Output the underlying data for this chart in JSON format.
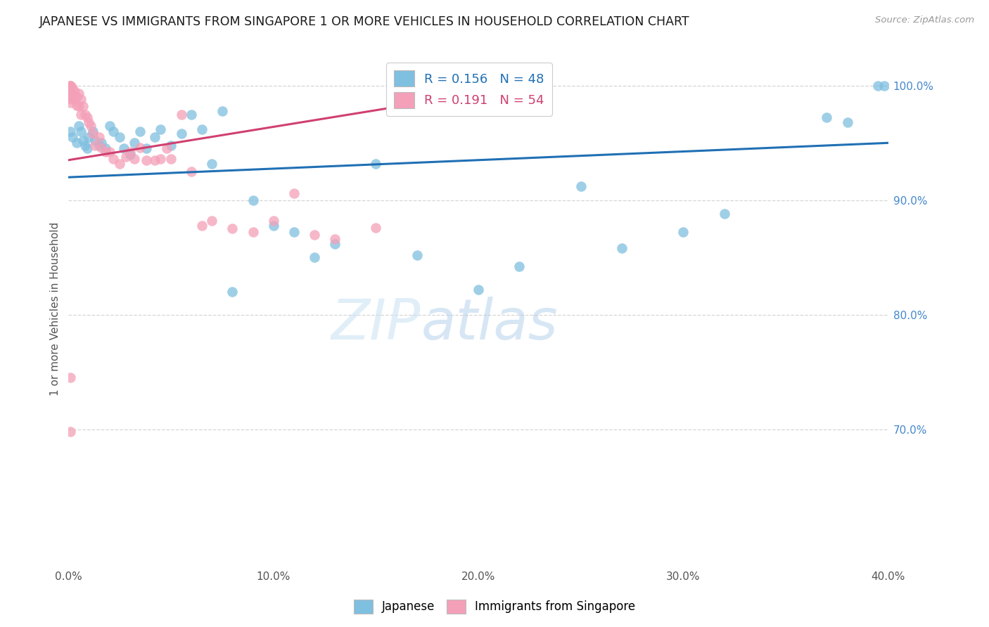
{
  "title": "JAPANESE VS IMMIGRANTS FROM SINGAPORE 1 OR MORE VEHICLES IN HOUSEHOLD CORRELATION CHART",
  "source": "Source: ZipAtlas.com",
  "ylabel": "1 or more Vehicles in Household",
  "xlim": [
    0.0,
    0.4
  ],
  "ylim": [
    0.58,
    1.03
  ],
  "xtick_values": [
    0.0,
    0.1,
    0.2,
    0.3,
    0.4
  ],
  "xtick_labels": [
    "0.0%",
    "10.0%",
    "20.0%",
    "30.0%",
    "40.0%"
  ],
  "ytick_right_values": [
    0.7,
    0.8,
    0.9,
    1.0
  ],
  "ytick_right_labels": [
    "70.0%",
    "80.0%",
    "90.0%",
    "100.0%"
  ],
  "watermark": "ZIPatlas",
  "blue_color": "#7fbfdf",
  "pink_color": "#f4a0b8",
  "trend_blue_color": "#2070b4",
  "trend_pink_color": "#d04070",
  "background_color": "#ffffff",
  "grid_color": "#cccccc",
  "title_color": "#1a1a1a",
  "source_color": "#999999",
  "axis_color": "#555555",
  "right_tick_color": "#4488cc",
  "legend_R_color_blue": "#2070b4",
  "legend_R_color_pink": "#d04070",
  "legend_N_color": "#333333",
  "japanese_x": [
    0.001,
    0.002,
    0.004,
    0.005,
    0.006,
    0.007,
    0.008,
    0.009,
    0.01,
    0.012,
    0.013,
    0.015,
    0.016,
    0.018,
    0.02,
    0.022,
    0.025,
    0.027,
    0.03,
    0.032,
    0.035,
    0.038,
    0.042,
    0.045,
    0.05,
    0.055,
    0.06,
    0.065,
    0.07,
    0.075,
    0.08,
    0.09,
    0.1,
    0.11,
    0.12,
    0.13,
    0.15,
    0.17,
    0.2,
    0.22,
    0.25,
    0.27,
    0.3,
    0.32,
    0.37,
    0.38,
    0.395,
    0.398
  ],
  "japanese_y": [
    0.96,
    0.955,
    0.95,
    0.965,
    0.96,
    0.952,
    0.948,
    0.945,
    0.955,
    0.96,
    0.952,
    0.948,
    0.95,
    0.945,
    0.965,
    0.96,
    0.955,
    0.945,
    0.94,
    0.95,
    0.96,
    0.945,
    0.955,
    0.962,
    0.948,
    0.958,
    0.975,
    0.962,
    0.932,
    0.978,
    0.82,
    0.9,
    0.878,
    0.872,
    0.85,
    0.862,
    0.932,
    0.852,
    0.822,
    0.842,
    0.912,
    0.858,
    0.872,
    0.888,
    0.972,
    0.968,
    1.0,
    1.0
  ],
  "singapore_x": [
    0.001,
    0.001,
    0.001,
    0.001,
    0.001,
    0.001,
    0.001,
    0.001,
    0.001,
    0.002,
    0.002,
    0.003,
    0.003,
    0.004,
    0.004,
    0.005,
    0.005,
    0.006,
    0.006,
    0.007,
    0.008,
    0.009,
    0.01,
    0.011,
    0.012,
    0.013,
    0.015,
    0.016,
    0.018,
    0.02,
    0.022,
    0.025,
    0.028,
    0.03,
    0.032,
    0.035,
    0.038,
    0.042,
    0.045,
    0.048,
    0.05,
    0.055,
    0.06,
    0.065,
    0.07,
    0.08,
    0.09,
    0.1,
    0.11,
    0.12,
    0.13,
    0.15,
    0.001,
    0.001
  ],
  "singapore_y": [
    1.0,
    1.0,
    1.0,
    0.998,
    0.995,
    0.993,
    0.99,
    0.988,
    0.985,
    0.998,
    0.992,
    0.995,
    0.988,
    0.99,
    0.983,
    0.993,
    0.982,
    0.988,
    0.975,
    0.982,
    0.975,
    0.972,
    0.968,
    0.965,
    0.958,
    0.948,
    0.955,
    0.946,
    0.942,
    0.942,
    0.936,
    0.932,
    0.938,
    0.942,
    0.936,
    0.946,
    0.935,
    0.935,
    0.936,
    0.945,
    0.936,
    0.975,
    0.925,
    0.878,
    0.882,
    0.875,
    0.872,
    0.882,
    0.906,
    0.87,
    0.866,
    0.876,
    0.745,
    0.698
  ],
  "blue_trendline_x": [
    0.0,
    0.4
  ],
  "blue_trendline_y": [
    0.92,
    0.95
  ],
  "pink_trendline_x": [
    0.0,
    0.155
  ],
  "pink_trendline_y": [
    0.935,
    0.98
  ]
}
